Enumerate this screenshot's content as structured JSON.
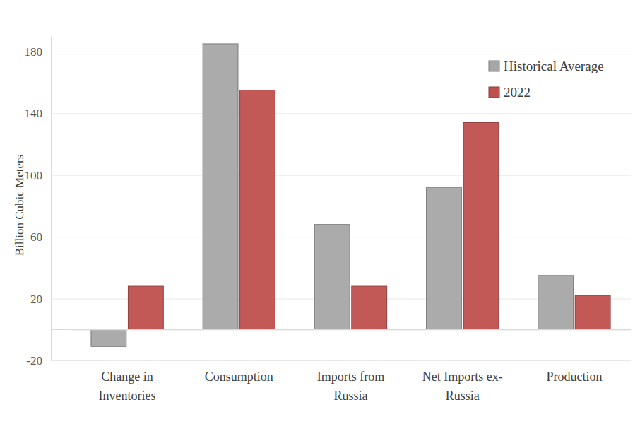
{
  "chart_data": {
    "type": "bar",
    "categories": [
      "Change in Inventories",
      "Consumption",
      "Imports from Russia",
      "Net Imports ex-Russia",
      "Production"
    ],
    "series": [
      {
        "name": "Historical Average",
        "color": "#a6a6a6",
        "values": [
          -11,
          185,
          68,
          92,
          35
        ]
      },
      {
        "name": "2022",
        "color": "#c0504d",
        "values": [
          28,
          155,
          28,
          134,
          22
        ]
      }
    ],
    "y_label": "Billion Cubic Meters",
    "ylim": [
      -20,
      190
    ],
    "yticks": [
      -20,
      20,
      60,
      100,
      140,
      180
    ],
    "grid": true,
    "legend": "top-right"
  }
}
